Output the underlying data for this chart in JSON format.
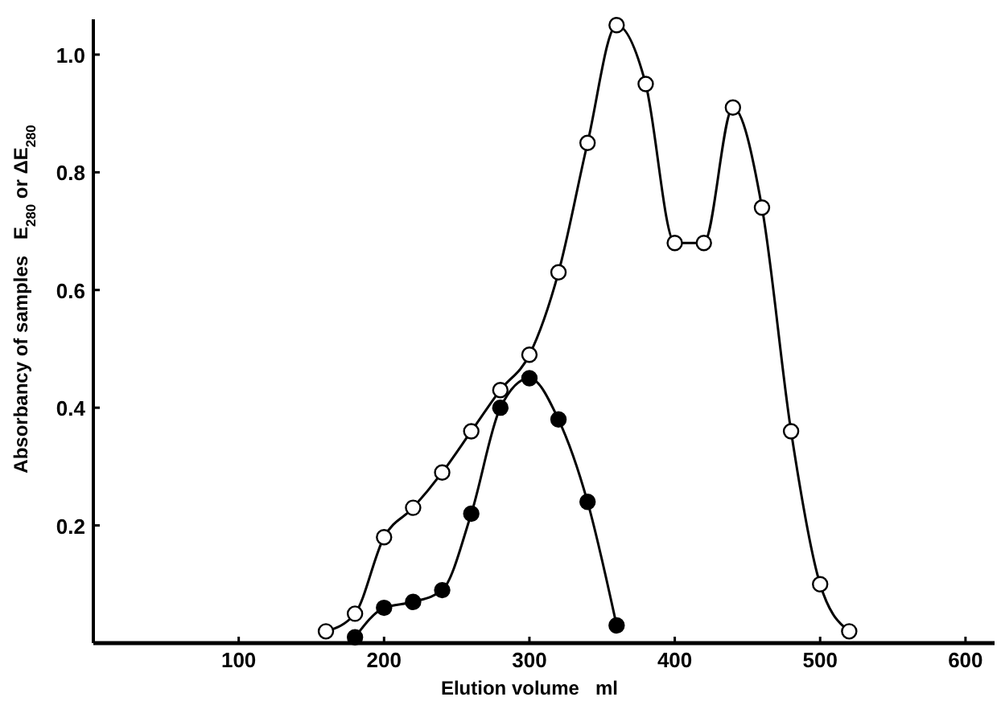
{
  "chart_data": {
    "type": "line",
    "xlabel": "Elution volume   ml",
    "ylabel": "Absorbancy of samples   E$_{280}$ or ΔE$_{280}$",
    "xlim": [
      0,
      620
    ],
    "ylim": [
      0,
      1.06
    ],
    "xticks": [
      100,
      200,
      300,
      400,
      500,
      600
    ],
    "yticks": [
      0.2,
      0.4,
      0.6,
      0.8,
      {
        "value": 1.0,
        "label": "1.0"
      }
    ],
    "grid": false,
    "marker": "circle",
    "line_style": "solid",
    "series": [
      {
        "color": "#000000",
        "x": [
          160,
          180,
          200,
          220,
          240,
          260,
          280,
          300,
          320,
          340,
          360,
          380,
          400,
          420,
          440,
          460,
          480,
          500,
          520
        ],
        "values": [
          0.02,
          0.05,
          0.18,
          0.23,
          0.29,
          0.36,
          0.43,
          0.49,
          0.63,
          0.85,
          1.05,
          0.95,
          0.68,
          0.68,
          0.91,
          0.74,
          0.36,
          0.1,
          0.02
        ]
      },
      {
        "color": "#000000",
        "x": [
          180,
          200,
          220,
          240,
          260,
          280,
          300,
          320,
          340,
          360
        ],
        "values": [
          0.01,
          0.06,
          0.07,
          0.09,
          0.22,
          0.4,
          0.45,
          0.38,
          0.24,
          0.03
        ]
      }
    ]
  }
}
